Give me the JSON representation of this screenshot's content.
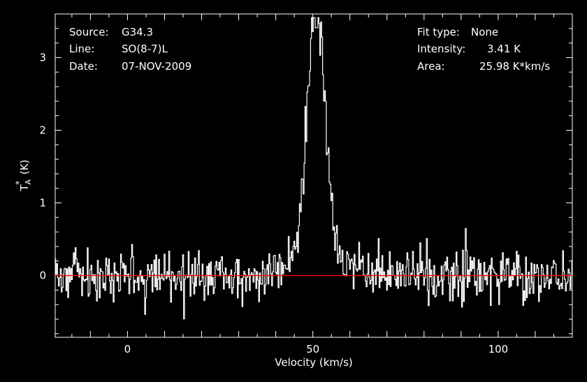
{
  "chart_data": {
    "type": "line",
    "title": "",
    "xlabel": "Velocity (km/s)",
    "ylabel": "T_A^* (K)",
    "xlim": [
      -19.5,
      120
    ],
    "ylim": [
      -0.85,
      3.6
    ],
    "xticks": [
      0,
      50,
      100
    ],
    "yticks": [
      0,
      1,
      2,
      3
    ],
    "grid": false,
    "baseline": 0,
    "info_left": [
      {
        "key": "Source:",
        "value": "G34.3"
      },
      {
        "key": "Line:",
        "value": "SO(8-7)L"
      },
      {
        "key": "Date:",
        "value": "07-NOV-2009"
      }
    ],
    "info_right": [
      {
        "key": "Fit type:",
        "value": "None"
      },
      {
        "key": "Intensity:",
        "value": "3.41 K"
      },
      {
        "key": "Area:",
        "value": "25.98 K*km/s"
      }
    ],
    "peak": {
      "velocity": 51,
      "intensity": 3.41
    },
    "line_profile_width": 5.5,
    "noise_rms": 0.17,
    "channel_spacing": 0.25,
    "colors": {
      "background": "#000000",
      "spectrum": "#ffffff",
      "baseline": "#ff0000",
      "axes": "#ffffff"
    }
  }
}
